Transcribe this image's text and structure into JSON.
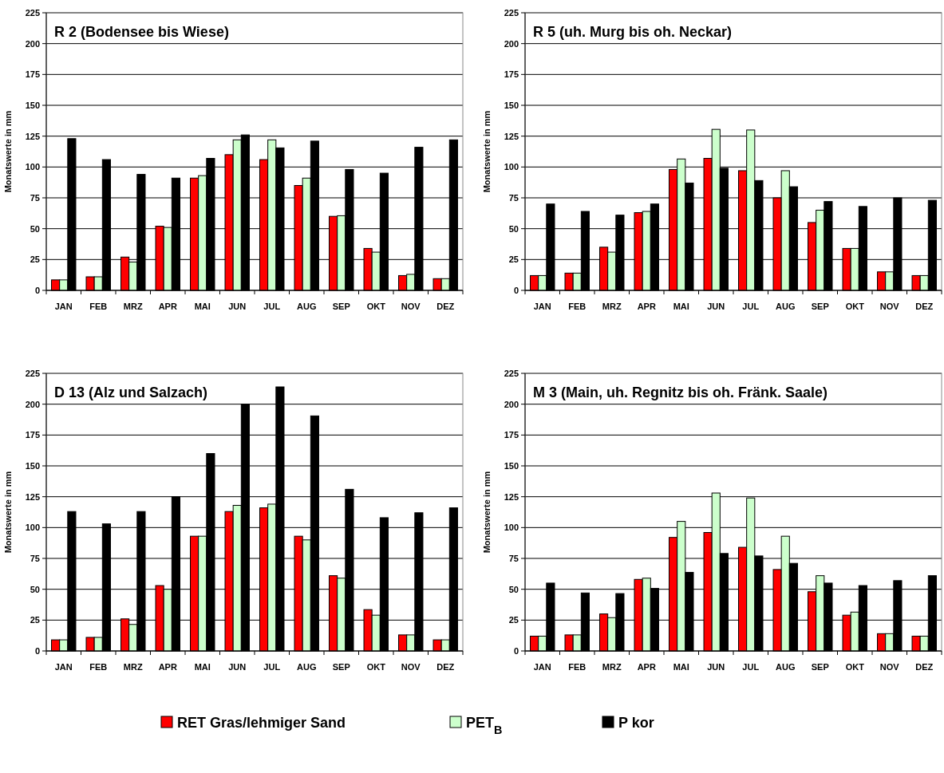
{
  "chart_data": [
    {
      "type": "bar",
      "title": "R 2 (Bodensee bis Wiese)",
      "ylabel": "Monatswerte in mm",
      "categories": [
        "JAN",
        "FEB",
        "MRZ",
        "APR",
        "MAI",
        "JUN",
        "JUL",
        "AUG",
        "SEP",
        "OKT",
        "NOV",
        "DEZ"
      ],
      "ylim": [
        0,
        225
      ],
      "yticks": [
        0,
        25,
        50,
        75,
        100,
        125,
        150,
        175,
        200,
        225
      ],
      "grid": "y",
      "legend": "bottom",
      "series": [
        {
          "name": "RET Gras/lehmiger Sand",
          "color": "#ff0000",
          "values": [
            8.5,
            11,
            27,
            52,
            91,
            110,
            106,
            85,
            60,
            34,
            12,
            9.5
          ]
        },
        {
          "name": "PET$_{B}$",
          "color": "#ccffcc",
          "values": [
            8.5,
            11,
            23,
            51,
            93,
            122,
            122,
            91,
            60.5,
            31,
            13,
            9.5
          ]
        },
        {
          "name": "P kor",
          "color": "#000000",
          "values": [
            123,
            106,
            94,
            91,
            107,
            126,
            115.5,
            121,
            98,
            95,
            116,
            122
          ]
        }
      ]
    },
    {
      "type": "bar",
      "title": "R 5 (uh. Murg bis oh. Neckar)",
      "ylabel": "Monatswerte in mm",
      "categories": [
        "JAN",
        "FEB",
        "MRZ",
        "APR",
        "MAI",
        "JUN",
        "JUL",
        "AUG",
        "SEP",
        "OKT",
        "NOV",
        "DEZ"
      ],
      "ylim": [
        0,
        225
      ],
      "yticks": [
        0,
        25,
        50,
        75,
        100,
        125,
        150,
        175,
        200,
        225
      ],
      "grid": "y",
      "series": [
        {
          "color": "#ff0000",
          "values": [
            12,
            14,
            35,
            63,
            98,
            107,
            97,
            75,
            55,
            34,
            15,
            12
          ]
        },
        {
          "color": "#ccffcc",
          "values": [
            12,
            14,
            31,
            64,
            106.5,
            130.5,
            130,
            97,
            65,
            34,
            15,
            12
          ]
        },
        {
          "color": "#000000",
          "values": [
            70,
            64,
            61,
            70,
            87,
            99,
            89,
            84,
            72,
            68,
            75,
            73
          ]
        }
      ]
    },
    {
      "type": "bar",
      "title": "D 13 (Alz und Salzach)",
      "ylabel": "Monatswerte in mm",
      "categories": [
        "JAN",
        "FEB",
        "MRZ",
        "APR",
        "MAI",
        "JUN",
        "JUL",
        "AUG",
        "SEP",
        "OKT",
        "NOV",
        "DEZ"
      ],
      "ylim": [
        0,
        225
      ],
      "yticks": [
        0,
        25,
        50,
        75,
        100,
        125,
        150,
        175,
        200,
        225
      ],
      "grid": "y",
      "series": [
        {
          "color": "#ff0000",
          "values": [
            9,
            11,
            26,
            53,
            93,
            113,
            116,
            93,
            61,
            33.5,
            13,
            9
          ]
        },
        {
          "color": "#ccffcc",
          "values": [
            9,
            11,
            21.5,
            50,
            93,
            118,
            119,
            90,
            59,
            29,
            13,
            9
          ]
        },
        {
          "color": "#000000",
          "values": [
            113,
            103,
            113,
            125,
            160,
            200,
            214,
            190.5,
            131,
            108,
            112,
            116
          ]
        }
      ]
    },
    {
      "type": "bar",
      "title": "M 3 (Main, uh. Regnitz bis oh. Fränk. Saale)",
      "ylabel": "Monatswerte in mm",
      "categories": [
        "JAN",
        "FEB",
        "MRZ",
        "APR",
        "MAI",
        "JUN",
        "JUL",
        "AUG",
        "SEP",
        "OKT",
        "NOV",
        "DEZ"
      ],
      "ylim": [
        0,
        225
      ],
      "yticks": [
        0,
        25,
        50,
        75,
        100,
        125,
        150,
        175,
        200,
        225
      ],
      "grid": "y",
      "series": [
        {
          "color": "#ff0000",
          "values": [
            12,
            13,
            30,
            58,
            92,
            96,
            84,
            66,
            48,
            29,
            14,
            12
          ]
        },
        {
          "color": "#ccffcc",
          "values": [
            12,
            13,
            27,
            59,
            105,
            128,
            124,
            93,
            61,
            31.5,
            14,
            12
          ]
        },
        {
          "color": "#000000",
          "values": [
            55,
            47,
            46.5,
            50.7,
            63.7,
            79,
            77,
            71,
            55,
            53,
            57,
            61
          ]
        }
      ]
    }
  ]
}
